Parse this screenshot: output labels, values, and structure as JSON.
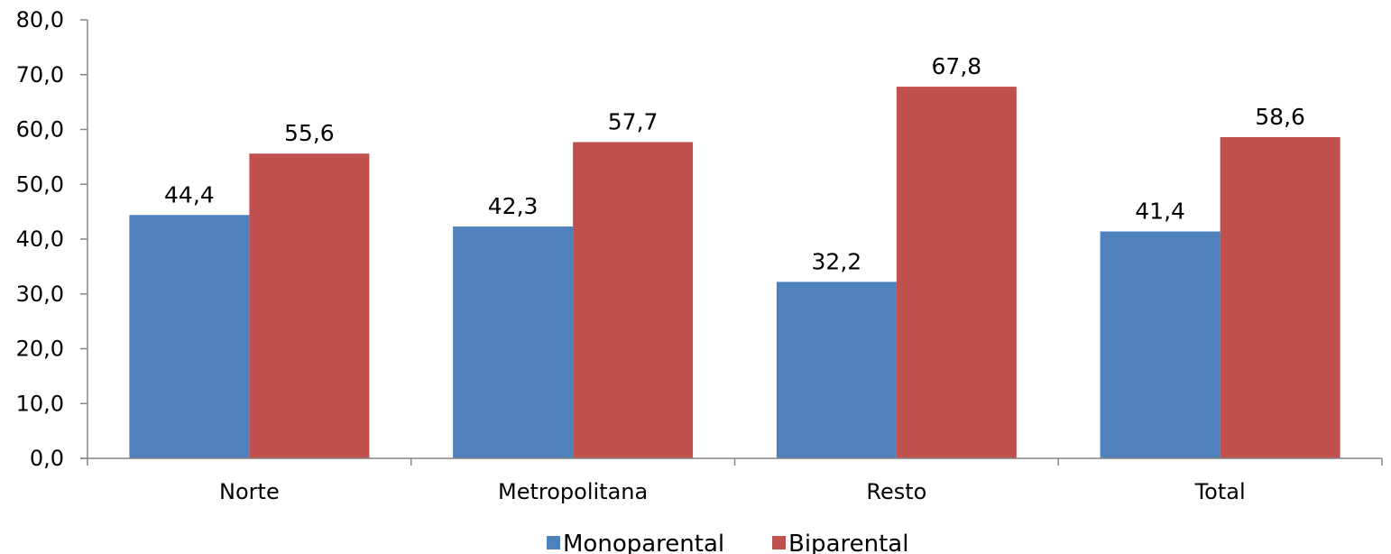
{
  "chart_data": {
    "type": "bar",
    "categories": [
      "Norte",
      "Metropolitana",
      "Resto",
      "Total"
    ],
    "series": [
      {
        "name": "Monoparental",
        "color": "#4F81BD",
        "values": [
          44.4,
          42.3,
          32.2,
          41.4
        ]
      },
      {
        "name": "Biparental",
        "color": "#C0504D",
        "values": [
          55.6,
          57.7,
          67.8,
          58.6
        ]
      }
    ],
    "data_labels": [
      [
        "44,4",
        "42,3",
        "32,2",
        "41,4"
      ],
      [
        "55,6",
        "57,7",
        "67,8",
        "58,6"
      ]
    ],
    "y_ticks": [
      "0,0",
      "10,0",
      "20,0",
      "30,0",
      "40,0",
      "50,0",
      "60,0",
      "70,0",
      "80,0"
    ],
    "ylim": [
      0,
      80
    ],
    "title": "",
    "xlabel": "",
    "ylabel": "",
    "grid": false,
    "legend_position": "bottom"
  }
}
